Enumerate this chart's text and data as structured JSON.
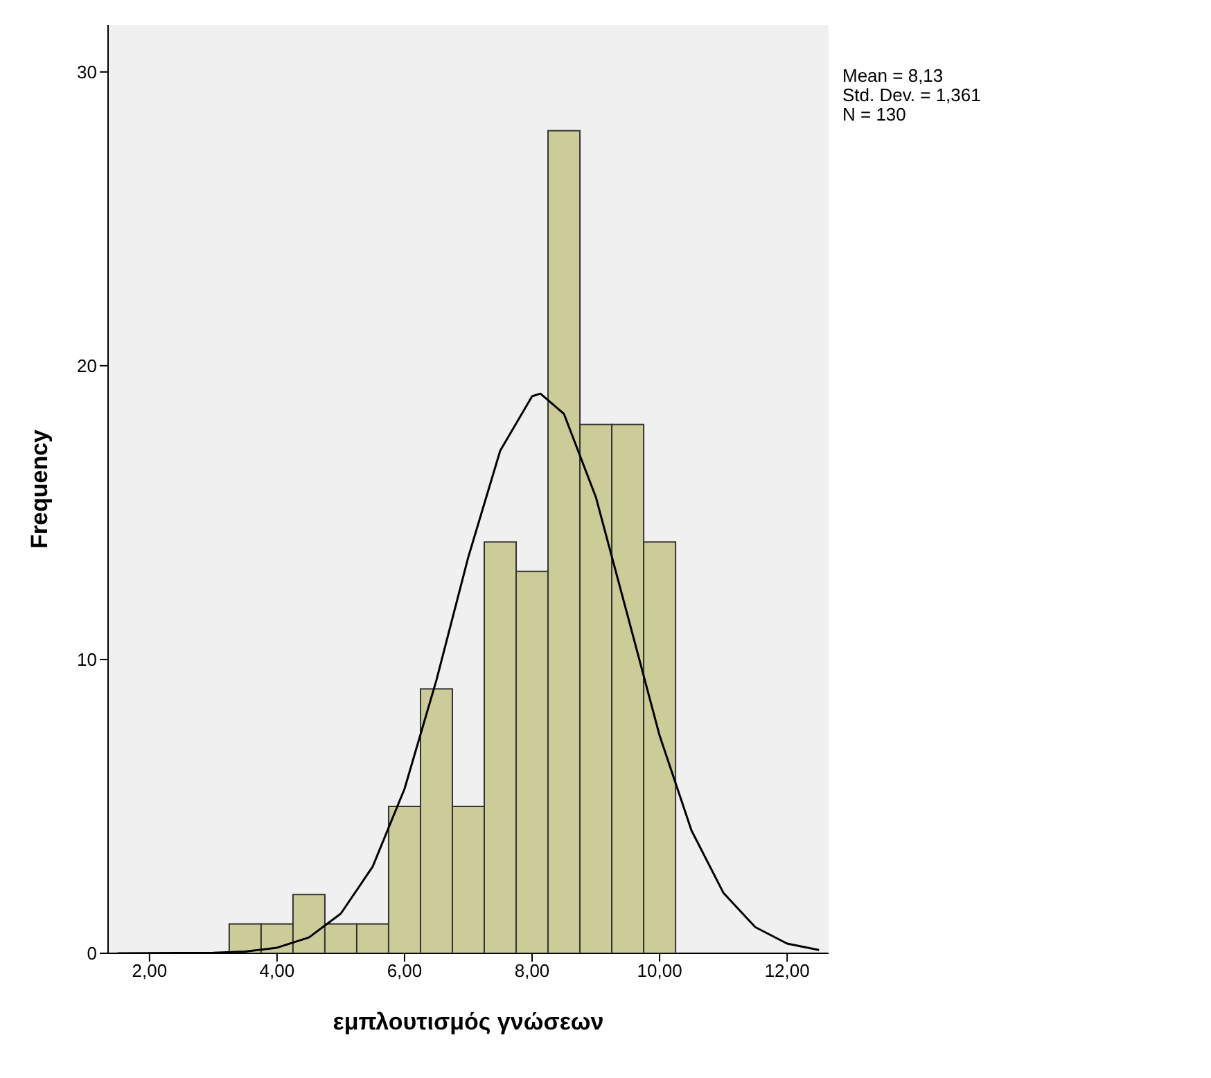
{
  "chart_data": {
    "type": "histogram",
    "xlabel": "εμπλουτισμός γνώσεων",
    "ylabel": "Frequency",
    "bins": [
      3.25,
      3.75,
      4.25,
      4.75,
      5.25,
      5.75,
      6.25,
      6.75,
      7.25,
      7.75,
      8.25,
      8.75,
      9.25,
      9.75,
      10.25
    ],
    "values": [
      1,
      1,
      2,
      1,
      1,
      5,
      9,
      5,
      14,
      13,
      28,
      18,
      18,
      14
    ],
    "color": "#cccc99",
    "series": [
      {
        "type": "line",
        "color": "#000000",
        "x": [
          1.5,
          3,
          3.5,
          4,
          4.5,
          5,
          5.5,
          6,
          6.5,
          7,
          7.5,
          8,
          8.13,
          8.5,
          9,
          9.5,
          10,
          10.5,
          11,
          11.5,
          12,
          12.5
        ],
        "values": [
          0,
          0.02,
          0.06,
          0.19,
          0.54,
          1.35,
          2.95,
          5.6,
          9.3,
          13.49,
          17.11,
          18.96,
          19.05,
          18.36,
          15.53,
          11.48,
          7.41,
          4.18,
          2.06,
          0.89,
          0.33,
          0.11
        ]
      }
    ],
    "xlim": [
      1.35,
      12.65
    ],
    "xticks": [
      {
        "value": 2,
        "label": "2,00"
      },
      {
        "value": 4,
        "label": "4,00"
      },
      {
        "value": 6,
        "label": "6,00"
      },
      {
        "value": 8,
        "label": "8,00"
      },
      {
        "value": 10,
        "label": "10,00"
      },
      {
        "value": 12,
        "label": "12,00"
      }
    ],
    "ylim": [
      0,
      31.6
    ],
    "yticks": [
      0,
      10,
      20,
      30
    ],
    "grid": false,
    "annotations": [
      "Mean = 8,13",
      "Std. Dev. = 1,361",
      "N = 130"
    ]
  }
}
